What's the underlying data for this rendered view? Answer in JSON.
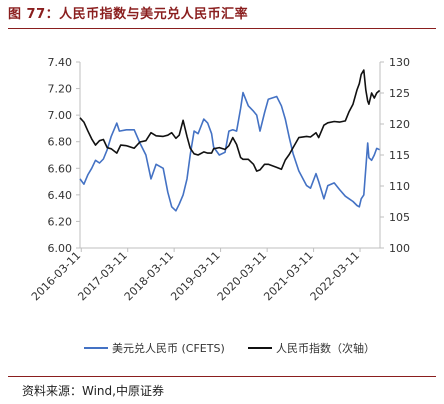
{
  "header": {
    "title": "图 77：人民币指数与美元兑人民币汇率"
  },
  "footer": {
    "source": "资料来源：Wind,中原证券"
  },
  "colors": {
    "title": "#8a1e1e",
    "usdcny": "#4472c4",
    "cny_index": "#111111",
    "axis": "#bfbfbf"
  },
  "chart_data": {
    "type": "line",
    "x_tick_labels": [
      "2016-03-11",
      "2017-03-11",
      "2018-03-11",
      "2019-03-11",
      "2020-03-11",
      "2021-03-11",
      "2022-03-11"
    ],
    "x_range": [
      "2016-03-01",
      "2022-08-15"
    ],
    "y_left": {
      "ticks": [
        "6.00",
        "6.20",
        "6.40",
        "6.60",
        "6.80",
        "7.00",
        "7.20",
        "7.40"
      ],
      "lim": [
        6.0,
        7.4
      ]
    },
    "y_right": {
      "ticks": [
        "100",
        "105",
        "110",
        "115",
        "120",
        "125",
        "130"
      ],
      "lim": [
        100,
        130
      ]
    },
    "legend_position": "bottom",
    "series": [
      {
        "name": "美元兑人民币 (CFETS)",
        "axis": "left",
        "points": [
          [
            "2016-03-01",
            6.52
          ],
          [
            "2016-04-01",
            6.48
          ],
          [
            "2016-05-01",
            6.55
          ],
          [
            "2016-06-01",
            6.6
          ],
          [
            "2016-07-01",
            6.66
          ],
          [
            "2016-08-01",
            6.64
          ],
          [
            "2016-09-01",
            6.67
          ],
          [
            "2016-10-01",
            6.74
          ],
          [
            "2016-11-01",
            6.84
          ],
          [
            "2016-12-15",
            6.94
          ],
          [
            "2017-01-05",
            6.88
          ],
          [
            "2017-03-01",
            6.89
          ],
          [
            "2017-05-01",
            6.89
          ],
          [
            "2017-06-15",
            6.79
          ],
          [
            "2017-08-01",
            6.7
          ],
          [
            "2017-09-10",
            6.52
          ],
          [
            "2017-10-20",
            6.63
          ],
          [
            "2017-12-15",
            6.6
          ],
          [
            "2018-01-20",
            6.42
          ],
          [
            "2018-02-20",
            6.31
          ],
          [
            "2018-03-25",
            6.28
          ],
          [
            "2018-04-20",
            6.33
          ],
          [
            "2018-05-20",
            6.4
          ],
          [
            "2018-06-20",
            6.52
          ],
          [
            "2018-07-15",
            6.7
          ],
          [
            "2018-08-15",
            6.88
          ],
          [
            "2018-09-15",
            6.86
          ],
          [
            "2018-10-30",
            6.97
          ],
          [
            "2018-11-30",
            6.94
          ],
          [
            "2018-12-30",
            6.86
          ],
          [
            "2019-01-15",
            6.76
          ],
          [
            "2019-03-01",
            6.7
          ],
          [
            "2019-04-15",
            6.72
          ],
          [
            "2019-05-15",
            6.88
          ],
          [
            "2019-06-15",
            6.89
          ],
          [
            "2019-07-15",
            6.88
          ],
          [
            "2019-08-15",
            7.05
          ],
          [
            "2019-09-03",
            7.17
          ],
          [
            "2019-10-15",
            7.07
          ],
          [
            "2019-11-25",
            7.03
          ],
          [
            "2019-12-20",
            7.0
          ],
          [
            "2020-01-15",
            6.88
          ],
          [
            "2020-02-20",
            7.02
          ],
          [
            "2020-03-20",
            7.12
          ],
          [
            "2020-05-25",
            7.14
          ],
          [
            "2020-07-01",
            7.07
          ],
          [
            "2020-08-01",
            6.97
          ],
          [
            "2020-09-01",
            6.83
          ],
          [
            "2020-10-01",
            6.71
          ],
          [
            "2020-11-15",
            6.58
          ],
          [
            "2021-01-15",
            6.47
          ],
          [
            "2021-02-15",
            6.45
          ],
          [
            "2021-03-30",
            6.56
          ],
          [
            "2021-04-20",
            6.5
          ],
          [
            "2021-05-31",
            6.37
          ],
          [
            "2021-07-01",
            6.47
          ],
          [
            "2021-08-20",
            6.49
          ],
          [
            "2021-10-01",
            6.44
          ],
          [
            "2021-11-15",
            6.39
          ],
          [
            "2021-12-15",
            6.37
          ],
          [
            "2022-01-15",
            6.35
          ],
          [
            "2022-02-15",
            6.32
          ],
          [
            "2022-03-05",
            6.31
          ],
          [
            "2022-03-20",
            6.37
          ],
          [
            "2022-04-10",
            6.4
          ],
          [
            "2022-04-25",
            6.6
          ],
          [
            "2022-05-10",
            6.79
          ],
          [
            "2022-05-20",
            6.68
          ],
          [
            "2022-06-10",
            6.66
          ],
          [
            "2022-07-01",
            6.7
          ],
          [
            "2022-07-20",
            6.75
          ],
          [
            "2022-08-12",
            6.74
          ]
        ]
      },
      {
        "name": "人民币指数（次轴）",
        "axis": "right",
        "points": [
          [
            "2016-03-01",
            121.0
          ],
          [
            "2016-04-01",
            120.3
          ],
          [
            "2016-05-01",
            118.9
          ],
          [
            "2016-06-01",
            117.6
          ],
          [
            "2016-07-01",
            116.6
          ],
          [
            "2016-08-01",
            117.3
          ],
          [
            "2016-09-01",
            117.5
          ],
          [
            "2016-10-01",
            116.2
          ],
          [
            "2016-11-01",
            116.0
          ],
          [
            "2016-12-15",
            115.3
          ],
          [
            "2017-01-15",
            116.6
          ],
          [
            "2017-03-01",
            116.5
          ],
          [
            "2017-05-01",
            116.1
          ],
          [
            "2017-06-15",
            117.1
          ],
          [
            "2017-08-01",
            117.3
          ],
          [
            "2017-09-10",
            118.6
          ],
          [
            "2017-10-20",
            118.1
          ],
          [
            "2017-12-15",
            118.0
          ],
          [
            "2018-01-20",
            118.2
          ],
          [
            "2018-02-20",
            118.6
          ],
          [
            "2018-03-25",
            117.7
          ],
          [
            "2018-04-20",
            118.2
          ],
          [
            "2018-05-20",
            120.6
          ],
          [
            "2018-06-20",
            118.0
          ],
          [
            "2018-07-15",
            116.1
          ],
          [
            "2018-08-15",
            115.2
          ],
          [
            "2018-09-15",
            115.0
          ],
          [
            "2018-10-30",
            115.5
          ],
          [
            "2018-11-30",
            115.3
          ],
          [
            "2018-12-30",
            115.3
          ],
          [
            "2019-01-15",
            116.0
          ],
          [
            "2019-03-01",
            116.2
          ],
          [
            "2019-04-15",
            115.9
          ],
          [
            "2019-05-15",
            116.5
          ],
          [
            "2019-06-15",
            117.8
          ],
          [
            "2019-07-15",
            116.7
          ],
          [
            "2019-08-15",
            114.6
          ],
          [
            "2019-09-03",
            114.3
          ],
          [
            "2019-10-15",
            114.3
          ],
          [
            "2019-11-25",
            113.5
          ],
          [
            "2019-12-20",
            112.4
          ],
          [
            "2020-01-15",
            112.6
          ],
          [
            "2020-02-20",
            113.5
          ],
          [
            "2020-03-20",
            113.5
          ],
          [
            "2020-05-25",
            113.0
          ],
          [
            "2020-07-01",
            112.7
          ],
          [
            "2020-08-01",
            114.2
          ],
          [
            "2020-09-01",
            115.1
          ],
          [
            "2020-10-01",
            116.2
          ],
          [
            "2020-11-15",
            117.8
          ],
          [
            "2021-01-15",
            118.0
          ],
          [
            "2021-02-15",
            117.9
          ],
          [
            "2021-03-30",
            118.6
          ],
          [
            "2021-04-20",
            117.8
          ],
          [
            "2021-05-31",
            119.8
          ],
          [
            "2021-07-01",
            120.2
          ],
          [
            "2021-08-20",
            120.4
          ],
          [
            "2021-10-01",
            120.3
          ],
          [
            "2021-11-15",
            120.5
          ],
          [
            "2021-12-15",
            122.0
          ],
          [
            "2022-01-15",
            123.2
          ],
          [
            "2022-02-15",
            125.5
          ],
          [
            "2022-03-05",
            126.5
          ],
          [
            "2022-03-20",
            128.0
          ],
          [
            "2022-04-10",
            128.7
          ],
          [
            "2022-04-25",
            125.5
          ],
          [
            "2022-05-10",
            123.7
          ],
          [
            "2022-05-20",
            123.2
          ],
          [
            "2022-06-10",
            125.0
          ],
          [
            "2022-07-01",
            124.2
          ],
          [
            "2022-07-20",
            125.0
          ],
          [
            "2022-08-12",
            125.4
          ]
        ]
      }
    ]
  }
}
